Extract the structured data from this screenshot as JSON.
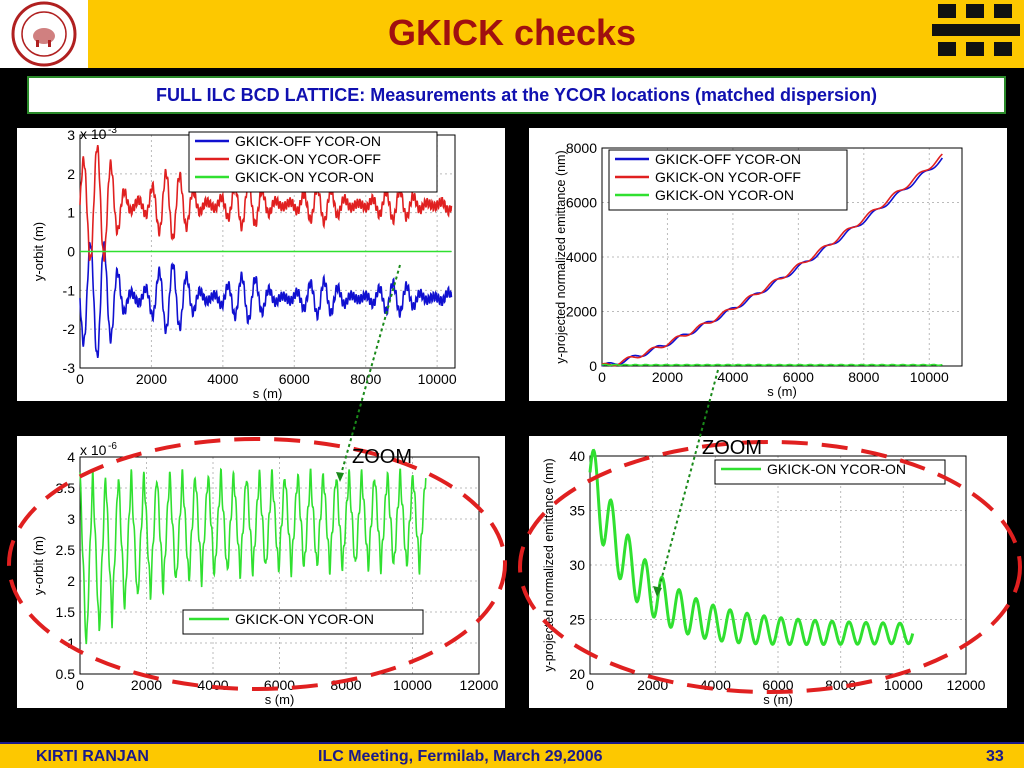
{
  "header": {
    "title": "GKICK checks"
  },
  "subtitle": "FULL ILC BCD LATTICE:  Measurements at the YCOR locations (matched dispersion)",
  "zoom_labels": [
    "ZOOM",
    "ZOOM"
  ],
  "footer": {
    "author": "KIRTI  RANJAN",
    "meeting": "ILC Meeting, Fermilab, March 29,2006",
    "page": "33"
  },
  "colors": {
    "header_bg": "#fdc800",
    "title": "#a01010",
    "subtitle_text": "#1010b0",
    "blue_series": "#1010d0",
    "red_series": "#e02020",
    "green_series": "#30e030",
    "ellipse": "#e02020"
  },
  "chart_data": [
    {
      "type": "line",
      "xlabel": "s (m)",
      "ylabel": "y-orbit (m)",
      "y_scale_label": "x 10",
      "y_scale_exp": "-3",
      "xlim": [
        0,
        10500
      ],
      "ylim": [
        -3,
        3
      ],
      "xticks": [
        "0",
        "2000",
        "4000",
        "6000",
        "8000",
        "10000"
      ],
      "yticks": [
        "-3",
        "-2",
        "-1",
        "0",
        "1",
        "2",
        "3"
      ],
      "series": [
        {
          "name": "GKICK-OFF YCOR-ON",
          "color": "#1010d0",
          "mean": -1.2,
          "amp_start": 1.4,
          "amp_end": 0.35
        },
        {
          "name": "GKICK-ON YCOR-OFF",
          "color": "#e02020",
          "mean": 1.2,
          "amp_start": 1.4,
          "amp_end": 0.35
        },
        {
          "name": "GKICK-ON YCOR-ON",
          "color": "#30e030",
          "mean": 0.0,
          "amp_start": 0,
          "amp_end": 0
        }
      ]
    },
    {
      "type": "line",
      "xlabel": "s (m)",
      "ylabel": "y-projected normalized emittance (nm)",
      "xlim": [
        0,
        11000
      ],
      "ylim": [
        0,
        8000
      ],
      "xticks": [
        "0",
        "2000",
        "4000",
        "6000",
        "8000",
        "10000"
      ],
      "yticks": [
        "0",
        "2000",
        "4000",
        "6000",
        "8000"
      ],
      "series": [
        {
          "name": "GKICK-OFF YCOR-ON",
          "color": "#1010d0",
          "x": [
            0,
            10400
          ],
          "y": [
            0,
            7600
          ]
        },
        {
          "name": "GKICK-ON YCOR-OFF",
          "color": "#e02020",
          "x": [
            0,
            10400
          ],
          "y": [
            0,
            7700
          ]
        },
        {
          "name": "GKICK-ON YCOR-ON",
          "color": "#30e030",
          "x": [
            0,
            10400
          ],
          "y": [
            40,
            40
          ]
        }
      ]
    },
    {
      "type": "line",
      "xlabel": "s (m)",
      "ylabel": "y-orbit (m)",
      "y_scale_label": "x 10",
      "y_scale_exp": "-6",
      "xlim": [
        0,
        12000
      ],
      "ylim": [
        0.5,
        4
      ],
      "xticks": [
        "0",
        "2000",
        "4000",
        "6000",
        "8000",
        "10000",
        "12000"
      ],
      "yticks": [
        "0.5",
        "1",
        "1.5",
        "2",
        "2.5",
        "3",
        "3.5",
        "4"
      ],
      "series": [
        {
          "name": "GKICK-ON YCOR-ON",
          "color": "#30e030",
          "high": 3.75,
          "low_start": 0.7,
          "low_end": 2.2
        }
      ]
    },
    {
      "type": "line",
      "xlabel": "s (m)",
      "ylabel": "y-projected normalized emittance (nm)",
      "xlim": [
        0,
        12000
      ],
      "ylim": [
        20,
        40
      ],
      "xticks": [
        "0",
        "2000",
        "4000",
        "6000",
        "8000",
        "10000",
        "12000"
      ],
      "yticks": [
        "20",
        "25",
        "30",
        "35",
        "40"
      ],
      "series": [
        {
          "name": "GKICK-ON YCOR-ON",
          "color": "#30e030",
          "start": 38.5,
          "end": 23.7,
          "osc_end": 0.8
        }
      ]
    }
  ]
}
